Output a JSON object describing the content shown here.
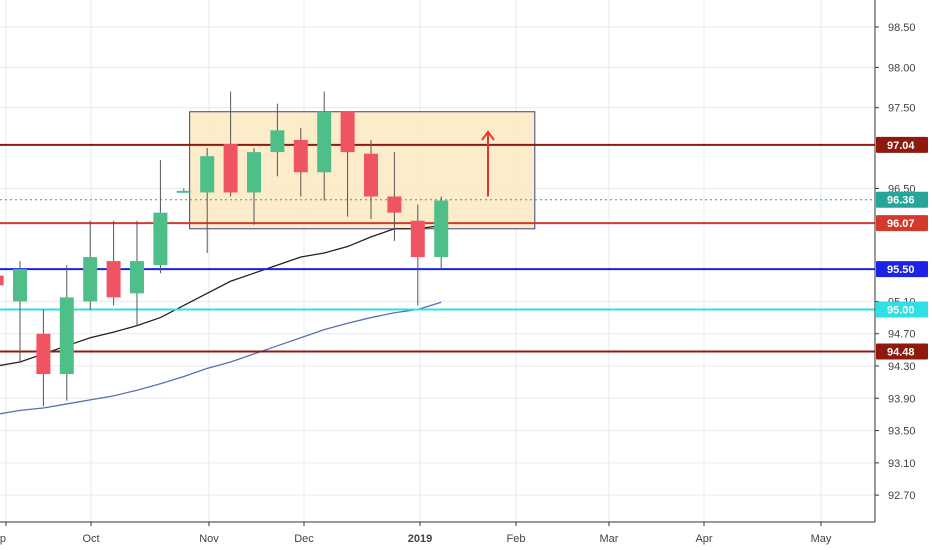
{
  "chart_data": {
    "type": "candlestick",
    "title": "",
    "xlabel": "",
    "ylabel": "",
    "ylim": [
      92.45,
      98.8
    ],
    "grid": true,
    "y_ticks": [
      "98.50",
      "98.00",
      "97.50",
      "96.50",
      "95.10",
      "94.70",
      "94.30",
      "93.90",
      "93.50",
      "93.10",
      "92.70"
    ],
    "x_ticks": [
      "p",
      "Oct",
      "Nov",
      "Dec",
      "2019",
      "Feb",
      "Mar",
      "Apr",
      "May"
    ],
    "candles": [
      {
        "week": -1,
        "open": 95.42,
        "high": 95.45,
        "low": 95.25,
        "close": 95.3
      },
      {
        "week": 0,
        "open": 95.1,
        "high": 95.6,
        "low": 94.35,
        "close": 95.5
      },
      {
        "week": 1,
        "open": 94.7,
        "high": 95.0,
        "low": 93.8,
        "close": 94.2
      },
      {
        "week": 2,
        "open": 94.2,
        "high": 95.55,
        "low": 93.87,
        "close": 95.15
      },
      {
        "week": 3,
        "open": 95.1,
        "high": 96.1,
        "low": 95.0,
        "close": 95.65
      },
      {
        "week": 4,
        "open": 95.6,
        "high": 96.1,
        "low": 95.05,
        "close": 95.15
      },
      {
        "week": 5,
        "open": 95.2,
        "high": 96.1,
        "low": 94.8,
        "close": 95.6
      },
      {
        "week": 6,
        "open": 95.55,
        "high": 96.85,
        "low": 95.45,
        "close": 96.2
      },
      {
        "week": 7,
        "open": 96.47,
        "high": 96.5,
        "low": 96.45,
        "close": 96.47
      },
      {
        "week": 8,
        "open": 96.45,
        "high": 97.0,
        "low": 95.7,
        "close": 96.9
      },
      {
        "week": 9,
        "open": 97.05,
        "high": 97.7,
        "low": 96.4,
        "close": 96.45
      },
      {
        "week": 10,
        "open": 96.45,
        "high": 97.0,
        "low": 96.05,
        "close": 96.95
      },
      {
        "week": 11,
        "open": 96.95,
        "high": 97.55,
        "low": 96.65,
        "close": 97.22
      },
      {
        "week": 12,
        "open": 97.1,
        "high": 97.25,
        "low": 96.4,
        "close": 96.7
      },
      {
        "week": 13,
        "open": 96.7,
        "high": 97.7,
        "low": 96.35,
        "close": 97.45
      },
      {
        "week": 14,
        "open": 97.45,
        "high": 97.45,
        "low": 96.15,
        "close": 96.95
      },
      {
        "week": 15,
        "open": 96.93,
        "high": 97.1,
        "low": 96.12,
        "close": 96.4
      },
      {
        "week": 16,
        "open": 96.4,
        "high": 96.95,
        "low": 95.85,
        "close": 96.2
      },
      {
        "week": 17,
        "open": 96.1,
        "high": 96.3,
        "low": 95.05,
        "close": 95.65
      },
      {
        "week": 18,
        "open": 95.65,
        "high": 96.4,
        "low": 95.5,
        "close": 96.35
      }
    ],
    "moving_averages": [
      {
        "color": "#222222",
        "points": [
          [
            -1,
            94.3
          ],
          [
            0,
            94.35
          ],
          [
            1,
            94.45
          ],
          [
            2,
            94.55
          ],
          [
            3,
            94.65
          ],
          [
            4,
            94.72
          ],
          [
            5,
            94.8
          ],
          [
            6,
            94.9
          ],
          [
            7,
            95.05
          ],
          [
            8,
            95.2
          ],
          [
            9,
            95.35
          ],
          [
            10,
            95.45
          ],
          [
            11,
            95.55
          ],
          [
            12,
            95.65
          ],
          [
            13,
            95.7
          ],
          [
            14,
            95.78
          ],
          [
            15,
            95.9
          ],
          [
            16,
            96.0
          ],
          [
            17,
            96.0
          ],
          [
            18,
            96.04
          ]
        ]
      },
      {
        "color": "#5a6fb5",
        "points": [
          [
            -1,
            93.7
          ],
          [
            0,
            93.75
          ],
          [
            1,
            93.78
          ],
          [
            2,
            93.83
          ],
          [
            3,
            93.88
          ],
          [
            4,
            93.93
          ],
          [
            5,
            94.0
          ],
          [
            6,
            94.08
          ],
          [
            7,
            94.17
          ],
          [
            8,
            94.27
          ],
          [
            9,
            94.35
          ],
          [
            10,
            94.45
          ],
          [
            11,
            94.55
          ],
          [
            12,
            94.65
          ],
          [
            13,
            94.75
          ],
          [
            14,
            94.83
          ],
          [
            15,
            94.9
          ],
          [
            16,
            94.96
          ],
          [
            17,
            95.0
          ],
          [
            18,
            95.09
          ]
        ]
      }
    ],
    "levels": [
      {
        "value": 97.04,
        "label": "97.04",
        "color": "#8e1a0f",
        "width": 2
      },
      {
        "value": 96.36,
        "label": "96.36",
        "color": "#26a69a",
        "dotted": true,
        "width": 1
      },
      {
        "value": 96.07,
        "label": "96.07",
        "color": "#d33a2b",
        "width": 2
      },
      {
        "value": 95.5,
        "label": "95.50",
        "color": "#1d23e6",
        "width": 2
      },
      {
        "value": 95.0,
        "label": "95.00",
        "color": "#2ce0e6",
        "width": 2
      },
      {
        "value": 94.48,
        "label": "94.48",
        "color": "#8e1a0f",
        "width": 2
      }
    ],
    "range_box": {
      "from_week": 7.25,
      "to_week": 22,
      "top": 97.45,
      "bottom": 96.0
    },
    "arrow": {
      "week": 20,
      "from": 96.4,
      "to": 97.2
    }
  },
  "colors": {
    "up": "#4fbf8a",
    "down": "#ef5462",
    "box_fill": "#fde9c0",
    "box_border": "#3a3f8c",
    "arrow": "#e6352f",
    "grid": "#e6e9ef",
    "tag_border": "#aaaaaa"
  }
}
